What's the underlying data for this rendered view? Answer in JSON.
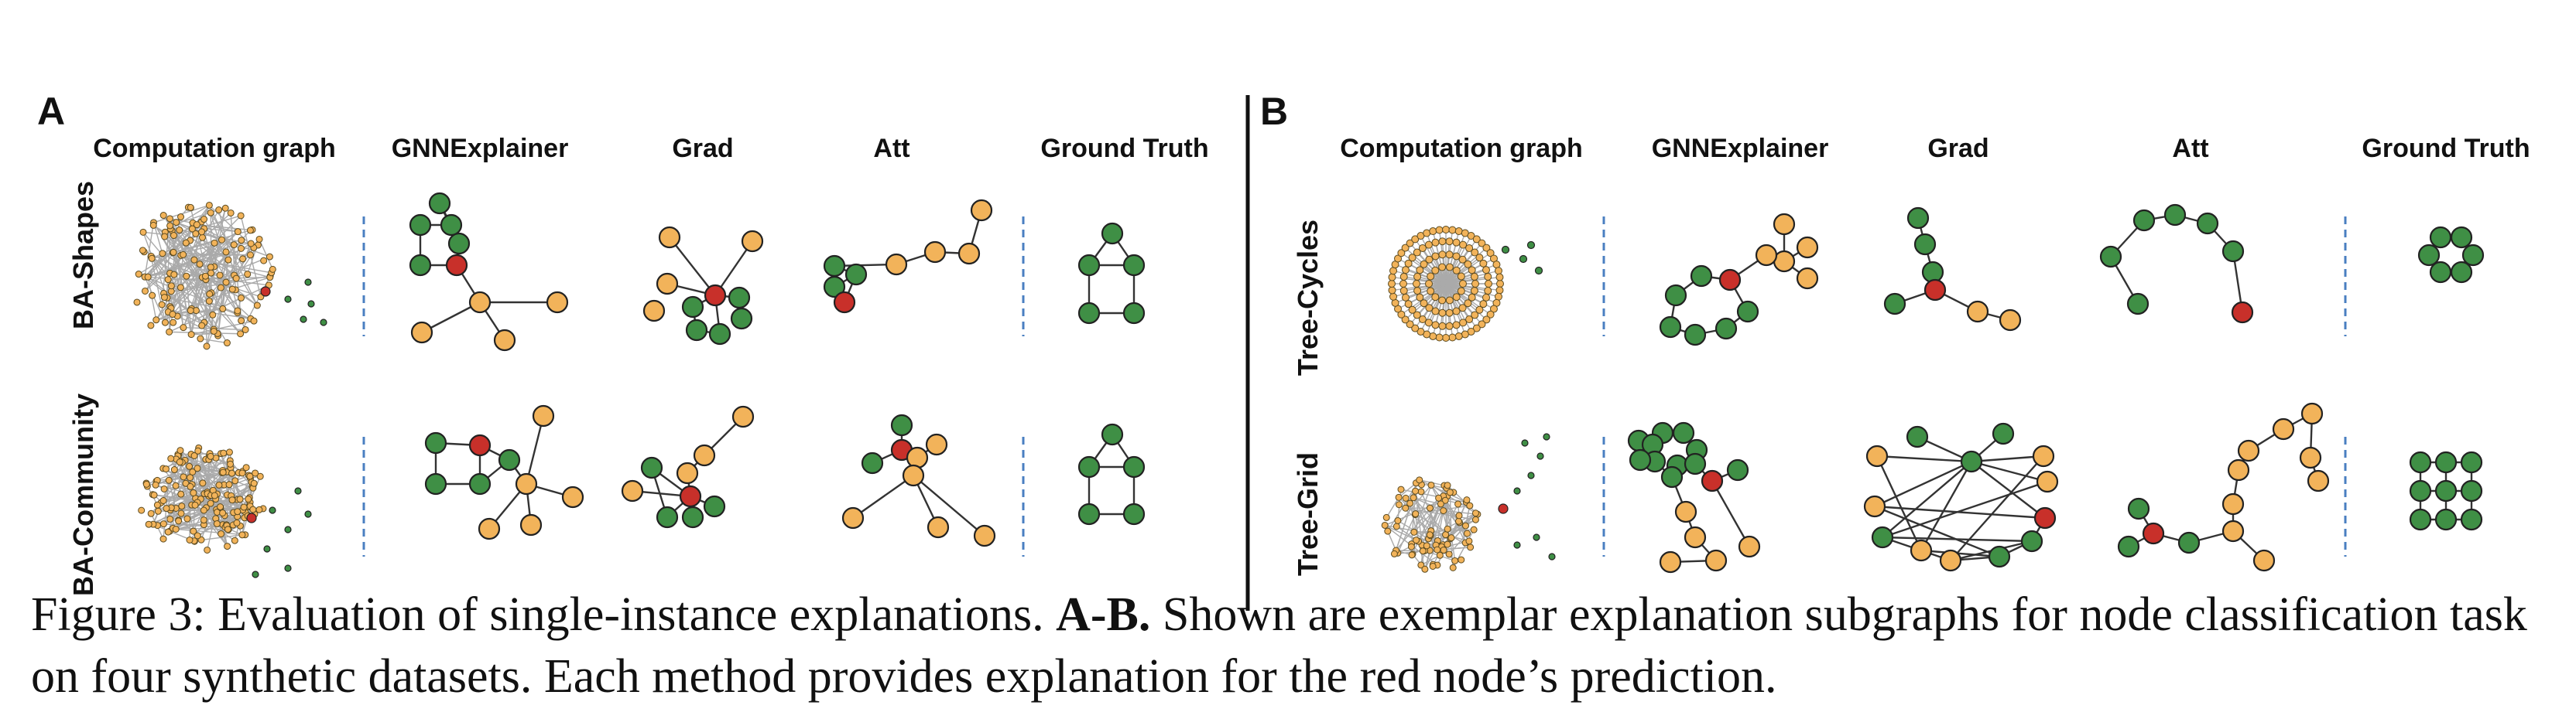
{
  "figure": {
    "panels": [
      {
        "letter": "A",
        "columns": [
          "Computation graph",
          "GNNExplainer",
          "Grad",
          "Att",
          "Ground Truth"
        ],
        "rows": [
          "BA-Shapes",
          "BA-Community"
        ]
      },
      {
        "letter": "B",
        "columns": [
          "Computation graph",
          "GNNExplainer",
          "Grad",
          "Att",
          "Ground Truth"
        ],
        "rows": [
          "Tree-Cycles",
          "Tree-Grid"
        ]
      }
    ],
    "colors": {
      "green": "#3f8f45",
      "orange": "#f2b35a",
      "red": "#c8302a",
      "divider": "#4a7fc1"
    }
  },
  "caption": {
    "prefix": "Figure 3: Evaluation of single-instance explanations. ",
    "bold": "A-B.",
    "rest": " Shown are exemplar explanation subgraphs for node classification task on four synthetic datasets. Each method provides explanation for the red node’s prediction."
  }
}
